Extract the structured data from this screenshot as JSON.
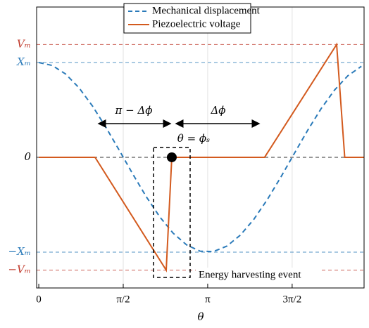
{
  "chart_data": {
    "type": "line",
    "xlabel": "θ",
    "xlim": [
      -0.04,
      6.05
    ],
    "ylim": [
      -1.378,
      1.585
    ],
    "xticks": [
      0,
      {
        "value": 1.5708,
        "label": "π/2"
      },
      {
        "value": 3.1416,
        "label": "π"
      },
      {
        "value": 4.7124,
        "label": "3π/2"
      }
    ],
    "yticks": [
      {
        "value": 1.19,
        "label": "Vₘ"
      },
      {
        "value": 1,
        "label": "Xₘ"
      },
      0,
      {
        "value": -1,
        "label": "−Xₘ"
      },
      {
        "value": -1.19,
        "label": "−Vₘ"
      }
    ],
    "ytick_colors": [
      "#c0392b",
      "#2a7ab9",
      "#000000",
      "#2a7ab9",
      "#c0392b"
    ],
    "grid": true,
    "legend": "top",
    "series": [
      {
        "name": "Mechanical displacement",
        "color": "#2a7ab9",
        "dashed": true,
        "x": [
          0,
          0.25,
          0.5,
          0.75,
          1.0,
          1.25,
          1.5,
          1.75,
          2.0,
          2.25,
          2.5,
          2.75,
          3.0,
          3.25,
          3.5,
          3.75,
          4.0,
          4.25,
          4.5,
          4.75,
          5.0,
          5.25,
          5.5,
          5.75,
          6.0
        ],
        "values": [
          1,
          0.969,
          0.878,
          0.732,
          0.54,
          0.315,
          0.071,
          -0.178,
          -0.416,
          -0.628,
          -0.801,
          -0.924,
          -0.99,
          -0.994,
          -0.936,
          -0.82,
          -0.654,
          -0.446,
          -0.211,
          0.038,
          0.284,
          0.512,
          0.709,
          0.861,
          0.96
        ]
      },
      {
        "name": "Piezoelectric voltage",
        "color": "#d35a1e",
        "dashed": false,
        "x": [
          0,
          1.047,
          2.37,
          2.474,
          4.2,
          5.54,
          5.69,
          6.05
        ],
        "values": [
          0,
          0,
          -1.19,
          0,
          0,
          1.19,
          0,
          0
        ]
      }
    ],
    "marker": {
      "x": 2.474,
      "y": 0,
      "label": "θ = ϕₛ"
    },
    "annotations": [
      "π − Δϕ",
      "Δϕ",
      "Energy harvesting event"
    ]
  }
}
